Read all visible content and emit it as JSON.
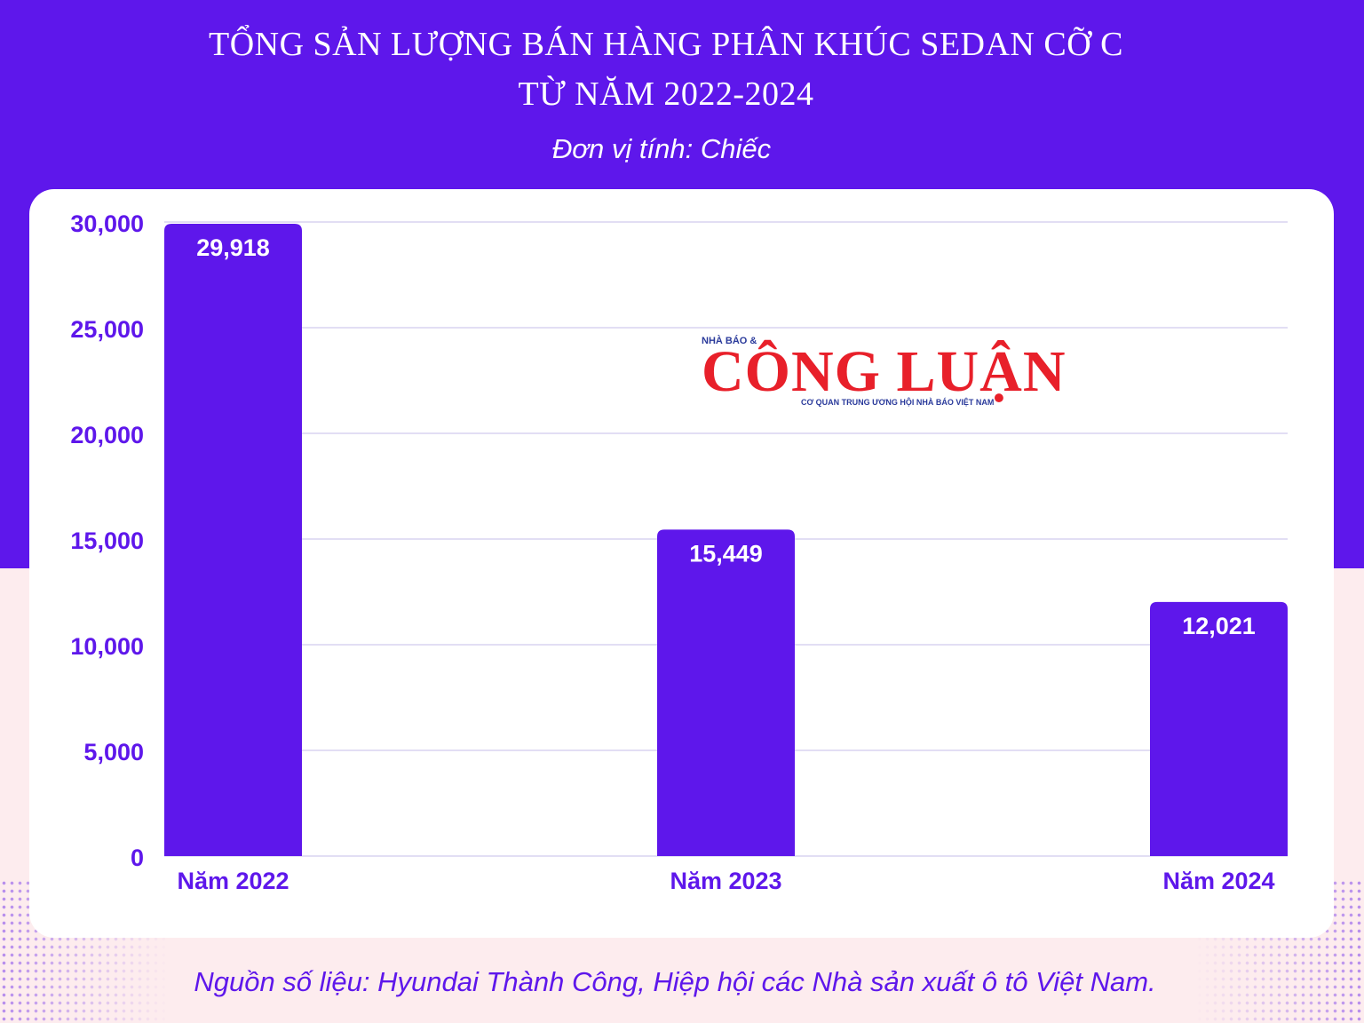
{
  "title_line1": "TỔNG SẢN LƯỢNG BÁN HÀNG PHÂN KHÚC SEDAN CỠ C",
  "title_line2": "TỪ NĂM 2022-2024",
  "unit": "Đơn vị tính: Chiếc",
  "source": "Nguồn số liệu: Hyundai Thành Công, Hiệp hội các Nhà sản xuất ô tô Việt Nam.",
  "logo": {
    "prefix": "NHÀ BÁO &",
    "name": "CÔNG LUẬN",
    "tagline": "CƠ QUAN TRUNG ƯƠNG HỘI NHÀ BÁO VIỆT NAM",
    "color": "#e8202a"
  },
  "colors": {
    "accent": "#5e17eb",
    "bar": "#5e17eb",
    "grid": "#d9d4f0",
    "background_lower": "#fdecee"
  },
  "chart_data": {
    "type": "bar",
    "categories": [
      "Năm 2022",
      "Năm 2023",
      "Năm 2024"
    ],
    "values": [
      29918,
      15449,
      12021
    ],
    "value_labels": [
      "29,918",
      "15,449",
      "12,021"
    ],
    "yticks": [
      "0",
      "5,000",
      "10,000",
      "15,000",
      "20,000",
      "25,000",
      "30,000"
    ],
    "ytick_values": [
      0,
      5000,
      10000,
      15000,
      20000,
      25000,
      30000
    ],
    "ylim": [
      0,
      30000
    ],
    "grid": true,
    "legend": "none"
  }
}
